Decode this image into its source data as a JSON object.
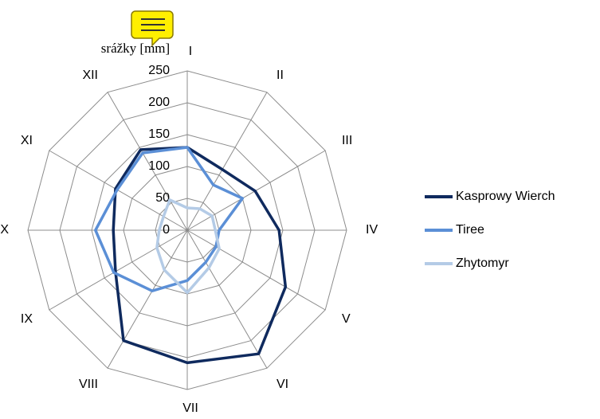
{
  "chart_data": {
    "type": "radar",
    "title": "srážky [mm]",
    "categories": [
      "I",
      "II",
      "III",
      "IV",
      "V",
      "VI",
      "VII",
      "VIII",
      "IX",
      "X",
      "XI",
      "XII"
    ],
    "ylim": [
      0,
      250
    ],
    "yticks": [
      0,
      50,
      100,
      150,
      200,
      250
    ],
    "grid": true,
    "legend": "right",
    "series": [
      {
        "name": "Kasprowy Wierch",
        "color": "#0f2a5e",
        "values": [
          130,
          110,
          123,
          144,
          178,
          224,
          208,
          200,
          130,
          116,
          130,
          146
        ]
      },
      {
        "name": "Tiree",
        "color": "#5b8fd6",
        "values": [
          130,
          82,
          100,
          50,
          52,
          58,
          79,
          110,
          133,
          144,
          127,
          140
        ]
      },
      {
        "name": "Zhytomyr",
        "color": "#b4cbe6",
        "values": [
          35,
          39,
          45,
          44,
          58,
          68,
          98,
          72,
          55,
          44,
          43,
          55
        ]
      }
    ]
  }
}
